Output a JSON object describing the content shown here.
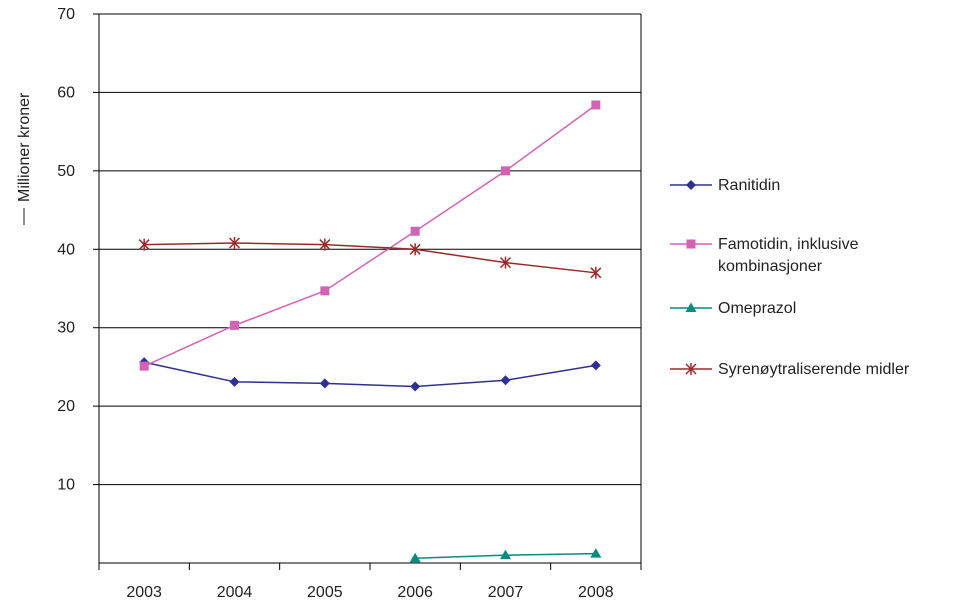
{
  "chart_data": {
    "type": "line",
    "title": "",
    "xlabel": "",
    "ylabel": "Millioner kroner",
    "categories": [
      "2003",
      "2004",
      "2005",
      "2006",
      "2007",
      "2008"
    ],
    "ylim": [
      0,
      70
    ],
    "yticks": [
      "10",
      "20",
      "30",
      "40",
      "50",
      "60",
      "70"
    ],
    "grid": true,
    "legend_position": "right",
    "series": [
      {
        "name": "Ranitidin",
        "color": "#2e3192",
        "marker": "diamond",
        "values": [
          25.6,
          23.1,
          22.9,
          22.5,
          23.3,
          25.2
        ]
      },
      {
        "name": "Famotidin, inklusive kombinasjoner",
        "color": "#d462b4",
        "marker": "square",
        "legend_lines": [
          "Famotidin, inklusive",
          "kombinasjoner"
        ],
        "values": [
          25.1,
          30.3,
          34.7,
          42.3,
          50.0,
          58.4
        ]
      },
      {
        "name": "Omeprazol",
        "color": "#0a8a80",
        "marker": "triangle",
        "values": [
          null,
          null,
          null,
          0.6,
          1.0,
          1.2
        ]
      },
      {
        "name": "Syrenøytraliserende midler",
        "color": "#9a2a2a",
        "marker": "star",
        "values": [
          40.6,
          40.8,
          40.6,
          40.0,
          38.3,
          37.0
        ]
      }
    ]
  }
}
